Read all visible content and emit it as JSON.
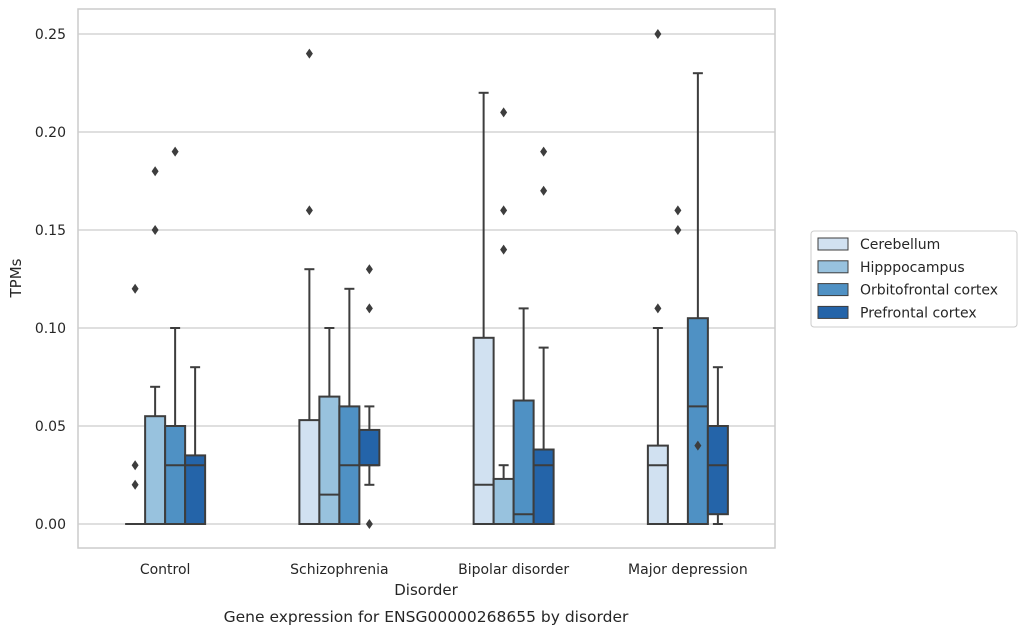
{
  "caption": "Gene expression for ENSG00000268655 by disorder",
  "colors": {
    "Cerebellum": "#d1e1f1",
    "Hipppocampus": "#98c2de",
    "Orbitofrontal cortex": "#4f91c4",
    "Prefrontal cortex": "#2464a9",
    "edge": "#3d3d3d",
    "grid": "#cccccc",
    "frame": "#cccccc"
  },
  "chart_data": {
    "type": "box",
    "xlabel": "Disorder",
    "ylabel": "TPMs",
    "ylim": [
      -0.012,
      0.263
    ],
    "yticks": [
      0.0,
      0.05,
      0.1,
      0.15,
      0.2,
      0.25
    ],
    "ytick_labels": [
      "0.00",
      "0.05",
      "0.10",
      "0.15",
      "0.20",
      "0.25"
    ],
    "grid": "horizontal",
    "legend_placement": "right, outside plot",
    "categories": [
      "Control",
      "Schizophrenia",
      "Bipolar disorder",
      "Major depression"
    ],
    "series": [
      {
        "name": "Cerebellum",
        "boxes": [
          {
            "q1": 0.0,
            "median": 0.0,
            "q3": 0.0,
            "whisker_low": 0.0,
            "whisker_high": 0.0,
            "outliers": [
              0.02,
              0.03,
              0.12
            ]
          },
          {
            "q1": 0.0,
            "median": 0.0,
            "q3": 0.053,
            "whisker_low": 0.0,
            "whisker_high": 0.13,
            "outliers": [
              0.16,
              0.24
            ]
          },
          {
            "q1": 0.0,
            "median": 0.02,
            "q3": 0.095,
            "whisker_low": 0.0,
            "whisker_high": 0.22,
            "outliers": []
          },
          {
            "q1": 0.0,
            "median": 0.03,
            "q3": 0.04,
            "whisker_low": 0.0,
            "whisker_high": 0.1,
            "outliers": [
              0.11,
              0.25
            ]
          }
        ]
      },
      {
        "name": "Hipppocampus",
        "boxes": [
          {
            "q1": 0.0,
            "median": 0.0,
            "q3": 0.055,
            "whisker_low": 0.0,
            "whisker_high": 0.07,
            "outliers": [
              0.15,
              0.18
            ]
          },
          {
            "q1": 0.0,
            "median": 0.015,
            "q3": 0.065,
            "whisker_low": 0.0,
            "whisker_high": 0.1,
            "outliers": []
          },
          {
            "q1": 0.0,
            "median": 0.0,
            "q3": 0.023,
            "whisker_low": 0.0,
            "whisker_high": 0.03,
            "outliers": [
              0.14,
              0.16,
              0.21
            ]
          },
          {
            "q1": 0.0,
            "median": 0.0,
            "q3": 0.0,
            "whisker_low": 0.0,
            "whisker_high": 0.0,
            "outliers": [
              0.15,
              0.16
            ]
          }
        ]
      },
      {
        "name": "Orbitofrontal cortex",
        "boxes": [
          {
            "q1": 0.0,
            "median": 0.03,
            "q3": 0.05,
            "whisker_low": 0.0,
            "whisker_high": 0.1,
            "outliers": [
              0.19
            ]
          },
          {
            "q1": 0.0,
            "median": 0.03,
            "q3": 0.06,
            "whisker_low": 0.0,
            "whisker_high": 0.12,
            "outliers": []
          },
          {
            "q1": 0.0,
            "median": 0.005,
            "q3": 0.063,
            "whisker_low": 0.0,
            "whisker_high": 0.11,
            "outliers": []
          },
          {
            "q1": 0.0,
            "median": 0.06,
            "q3": 0.105,
            "whisker_low": 0.0,
            "whisker_high": 0.23,
            "outliers": [
              0.04
            ]
          }
        ]
      },
      {
        "name": "Prefrontal cortex",
        "boxes": [
          {
            "q1": 0.0,
            "median": 0.03,
            "q3": 0.035,
            "whisker_low": 0.0,
            "whisker_high": 0.08,
            "outliers": []
          },
          {
            "q1": 0.03,
            "median": 0.03,
            "q3": 0.048,
            "whisker_low": 0.02,
            "whisker_high": 0.06,
            "outliers": [
              0.0,
              0.11,
              0.13
            ]
          },
          {
            "q1": 0.0,
            "median": 0.03,
            "q3": 0.038,
            "whisker_low": 0.0,
            "whisker_high": 0.09,
            "outliers": [
              0.17,
              0.19
            ]
          },
          {
            "q1": 0.005,
            "median": 0.03,
            "q3": 0.05,
            "whisker_low": 0.0,
            "whisker_high": 0.08,
            "outliers": []
          }
        ]
      }
    ]
  }
}
